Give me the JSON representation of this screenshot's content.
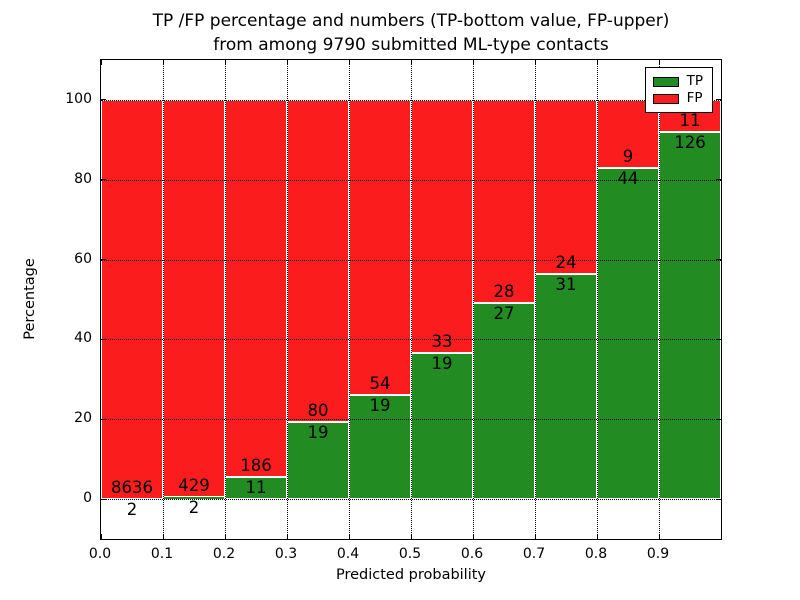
{
  "chart_data": {
    "type": "bar",
    "stacked": true,
    "normalized_percent": true,
    "title_lines": [
      "TP /FP percentage and numbers (TP-bottom value, FP-upper)",
      "from among 9790 submitted ML-type contacts"
    ],
    "xlabel": "Predicted probability",
    "ylabel": "Percentage",
    "x_tick_labels": [
      "0.0",
      "0.1",
      "0.2",
      "0.3",
      "0.4",
      "0.5",
      "0.6",
      "0.7",
      "0.8",
      "0.9"
    ],
    "y_tick_labels": [
      "0",
      "20",
      "40",
      "60",
      "80",
      "100"
    ],
    "y_tick_values": [
      0,
      20,
      40,
      60,
      80,
      100
    ],
    "xlim": [
      0.0,
      1.0
    ],
    "ylim": [
      -10,
      110
    ],
    "grid_style": "dotted",
    "legend_position": "upper right",
    "bins": [
      "0.0-0.1",
      "0.1-0.2",
      "0.2-0.3",
      "0.3-0.4",
      "0.4-0.5",
      "0.5-0.6",
      "0.6-0.7",
      "0.7-0.8",
      "0.8-0.9",
      "0.9-1.0"
    ],
    "series": [
      {
        "name": "TP",
        "color": "#228b22",
        "counts": [
          2,
          2,
          11,
          19,
          19,
          19,
          27,
          31,
          44,
          126
        ]
      },
      {
        "name": "FP",
        "color": "#fb1d1d",
        "counts": [
          8636,
          429,
          186,
          80,
          54,
          33,
          28,
          24,
          9,
          11
        ]
      }
    ],
    "tp_percent_of_bin": [
      0.02,
      0.46,
      5.58,
      19.19,
      26.03,
      36.54,
      49.09,
      56.36,
      83.02,
      91.97
    ],
    "total_contacts": 9790
  },
  "colors": {
    "tp_green": "#228b22",
    "fp_red": "#fb1d1d",
    "grid": "#000000",
    "background": "#ffffff",
    "text": "#000000"
  }
}
